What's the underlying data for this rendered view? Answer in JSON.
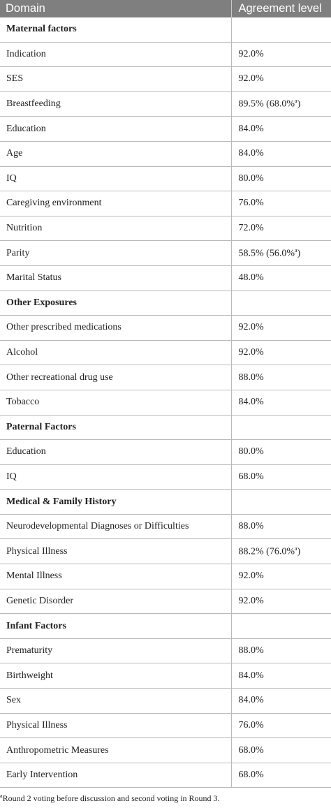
{
  "header": {
    "col1": "Domain",
    "col2": "Agreement level"
  },
  "rows": [
    {
      "label": "Maternal factors",
      "value": "",
      "section": true
    },
    {
      "label": "Indication",
      "value": "92.0%"
    },
    {
      "label": "SES",
      "value": "92.0%"
    },
    {
      "label": "Breastfeeding",
      "value": "89.5% (68.0%",
      "sup": "a",
      "tail": ")"
    },
    {
      "label": "Education",
      "value": "84.0%"
    },
    {
      "label": "Age",
      "value": "84.0%"
    },
    {
      "label": "IQ",
      "value": "80.0%"
    },
    {
      "label": "Caregiving environment",
      "value": "76.0%"
    },
    {
      "label": "Nutrition",
      "value": "72.0%"
    },
    {
      "label": "Parity",
      "value": "58.5% (56.0%",
      "sup": "a",
      "tail": ")"
    },
    {
      "label": "Marital Status",
      "value": "48.0%"
    },
    {
      "label": "Other Exposures",
      "value": "",
      "section": true
    },
    {
      "label": "Other prescribed medications",
      "value": "92.0%"
    },
    {
      "label": "Alcohol",
      "value": "92.0%"
    },
    {
      "label": "Other recreational drug use",
      "value": "88.0%"
    },
    {
      "label": "Tobacco",
      "value": "84.0%"
    },
    {
      "label": "Paternal Factors",
      "value": "",
      "section": true
    },
    {
      "label": "Education",
      "value": "80.0%"
    },
    {
      "label": "IQ",
      "value": "68.0%"
    },
    {
      "label": "Medical & Family History",
      "value": "",
      "section": true
    },
    {
      "label": "Neurodevelopmental Diagnoses or Difficulties",
      "value": "88.0%"
    },
    {
      "label": "Physical Illness",
      "value": "88.2% (76.0%",
      "sup": "a",
      "tail": ")"
    },
    {
      "label": "Mental Illness",
      "value": "92.0%"
    },
    {
      "label": "Genetic Disorder",
      "value": "92.0%"
    },
    {
      "label": "Infant Factors",
      "value": "",
      "section": true
    },
    {
      "label": "Prematurity",
      "value": "88.0%"
    },
    {
      "label": "Birthweight",
      "value": "84.0%"
    },
    {
      "label": "Sex",
      "value": "84.0%"
    },
    {
      "label": "Physical Illness",
      "value": "76.0%"
    },
    {
      "label": "Anthropometric Measures",
      "value": "68.0%"
    },
    {
      "label": "Early Intervention",
      "value": "68.0%"
    }
  ],
  "footnote": {
    "mark": "a",
    "text": "Round 2 voting before discussion and second voting in Round 3."
  }
}
